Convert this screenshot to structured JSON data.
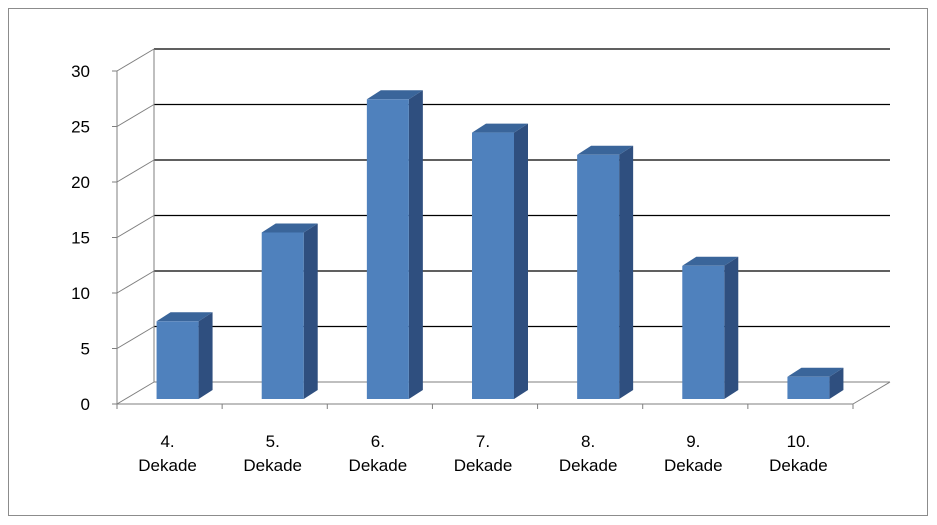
{
  "chart_data": {
    "type": "bar",
    "style": "3d-column",
    "categories": [
      "4. Dekade",
      "5. Dekade",
      "6. Dekade",
      "7. Dekade",
      "8. Dekade",
      "9. Dekade",
      "10. Dekade"
    ],
    "values": [
      7,
      15,
      27,
      24,
      22,
      12,
      2
    ],
    "title": "",
    "xlabel": "",
    "ylabel": "",
    "ylim": [
      0,
      30
    ],
    "yticks": [
      "0",
      "5",
      "10",
      "15",
      "20",
      "25",
      "30"
    ],
    "grid": true,
    "legend": "none",
    "colors": {
      "front": "#4f81bd",
      "side": "#2f4f7f",
      "top": "#3a659a",
      "grid": "#000000",
      "axis": "#7f7f7f"
    }
  }
}
